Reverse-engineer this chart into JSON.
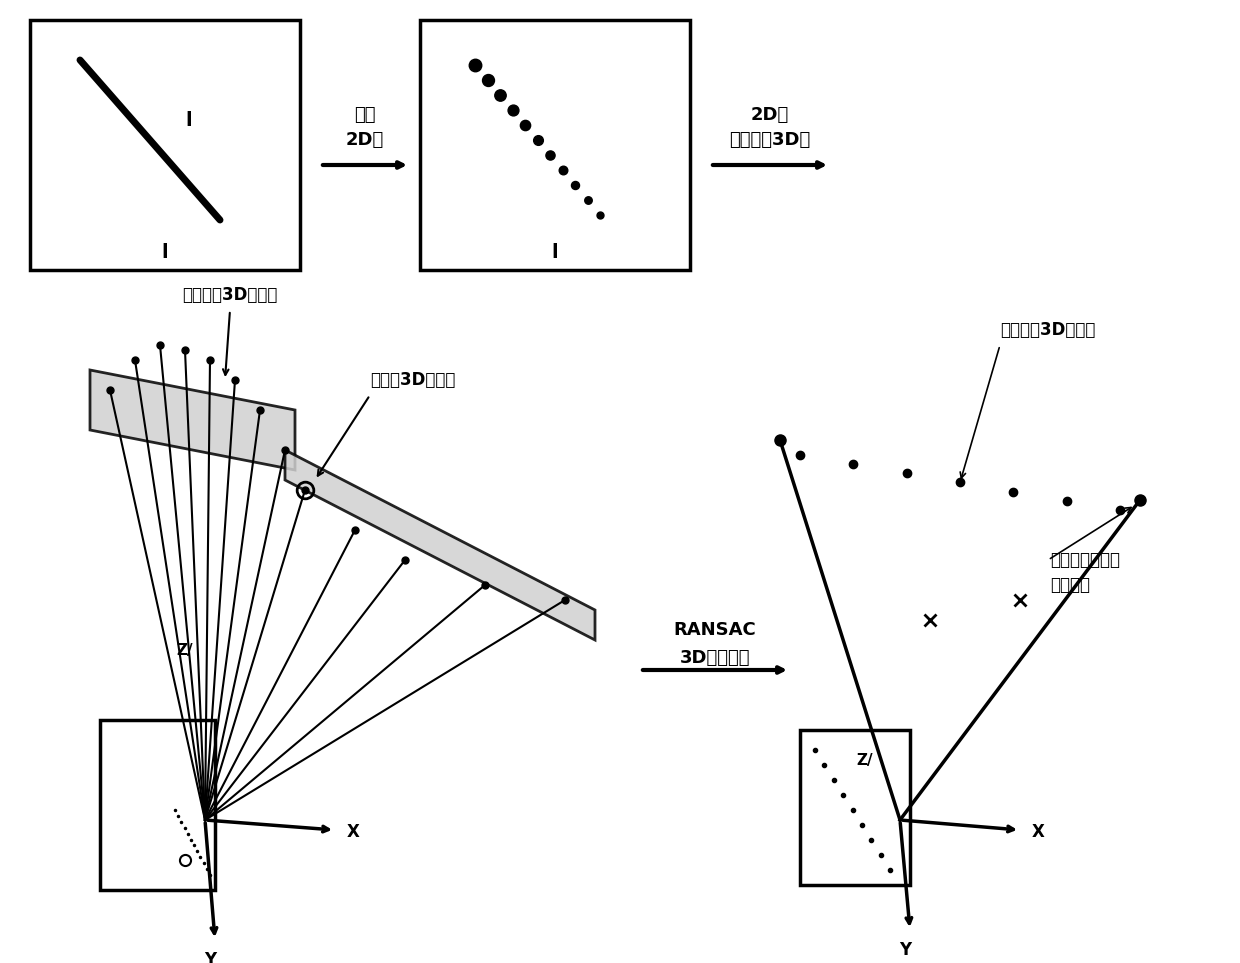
{
  "bg_color": "#ffffff",
  "line_color": "#000000",
  "label_l": "l",
  "label_step1_line1": "采样",
  "label_step1_line2": "2D点",
  "label_step2_line1": "2D点",
  "label_step2_line2": "反投影为3D点",
  "label_step3_line1": "RANSAC",
  "label_step3_line2": "3D直线拟合",
  "label_no_fit": "不合适的3D点位置",
  "label_fit": "合适的3D点位置",
  "label_fit_result": "拟合后的3D直线点",
  "label_fit_endpoints_line1": "拟合中过直线的",
  "label_fit_endpoints_line2": "最佳两点",
  "label_Z": "Z/",
  "label_X": "X",
  "label_Y": "Y"
}
